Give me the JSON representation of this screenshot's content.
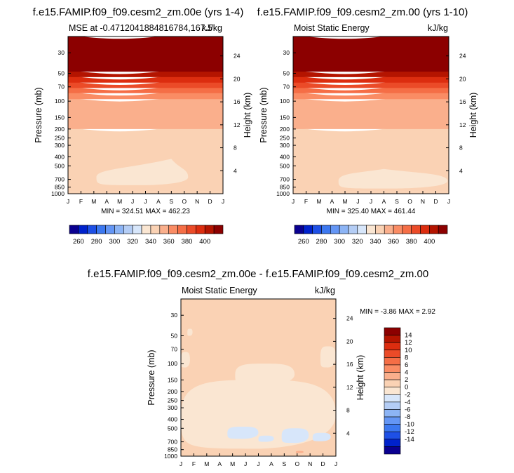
{
  "chart_data": [
    {
      "type": "heatmap",
      "title": "f.e15.FAMIP.f09_f09.cesm2_zm.00e (yrs 1-4)",
      "left_label": "MSE at -0.4712041884816784,167.5",
      "right_label": "kJ/kg",
      "xlabel": "",
      "ylabel": "Pressure (mb)",
      "ylabel_right": "Height (km)",
      "x_ticks": [
        "J",
        "F",
        "M",
        "A",
        "M",
        "J",
        "J",
        "A",
        "S",
        "O",
        "N",
        "D",
        "J"
      ],
      "y_ticks": [
        "30",
        "50",
        "70",
        "100",
        "150",
        "200",
        "250",
        "300",
        "400",
        "500",
        "700",
        "850",
        "1000"
      ],
      "y_values": [
        30,
        50,
        70,
        100,
        150,
        200,
        250,
        300,
        400,
        500,
        700,
        850,
        1000
      ],
      "ylim": [
        1000,
        20
      ],
      "height_ticks": [
        "24",
        "20",
        "16",
        "12",
        "8",
        "4"
      ],
      "height_values": [
        24,
        20,
        16,
        12,
        8,
        4
      ],
      "stats": "MIN = 324.51  MAX = 462.23",
      "min": 324.51,
      "max": 462.23,
      "bands": [
        {
          "bottom": 1000,
          "top": 950,
          "level": 340
        },
        {
          "bottom": 950,
          "top": 200,
          "level": 340
        },
        {
          "bottom": 200,
          "top": 95,
          "level": 350
        },
        {
          "bottom": 95,
          "top": 82,
          "level": 360
        },
        {
          "bottom": 82,
          "top": 72,
          "level": 370
        },
        {
          "bottom": 72,
          "top": 63,
          "level": 380
        },
        {
          "bottom": 63,
          "top": 55,
          "level": 390
        },
        {
          "bottom": 55,
          "top": 48,
          "level": 400
        },
        {
          "bottom": 48,
          "top": 20,
          "level": 410
        }
      ],
      "blobs": [
        {
          "month": [
            2.2,
            9.3
          ],
          "p": [
            540,
            810
          ],
          "peak_month": 8.0,
          "peak_p": 420,
          "level": 330
        }
      ]
    },
    {
      "type": "heatmap",
      "title": "f.e15.FAMIP.f09_f09.cesm2_zm.00 (yrs 1-10)",
      "left_label": "Moist Static Energy",
      "right_label": "kJ/kg",
      "xlabel": "",
      "ylabel": "Pressure (mb)",
      "ylabel_right": "Height (km)",
      "x_ticks": [
        "J",
        "F",
        "M",
        "A",
        "M",
        "J",
        "J",
        "A",
        "S",
        "O",
        "N",
        "D",
        "J"
      ],
      "y_ticks": [
        "30",
        "50",
        "70",
        "100",
        "150",
        "200",
        "250",
        "300",
        "400",
        "500",
        "700",
        "850",
        "1000"
      ],
      "y_values": [
        30,
        50,
        70,
        100,
        150,
        200,
        250,
        300,
        400,
        500,
        700,
        850,
        1000
      ],
      "ylim": [
        1000,
        20
      ],
      "height_ticks": [
        "24",
        "20",
        "16",
        "12",
        "8",
        "4"
      ],
      "height_values": [
        24,
        20,
        16,
        12,
        8,
        4
      ],
      "stats": "MIN = 325.40  MAX = 461.44",
      "min": 325.4,
      "max": 461.44,
      "bands": [
        {
          "bottom": 1000,
          "top": 950,
          "level": 340
        },
        {
          "bottom": 950,
          "top": 200,
          "level": 340
        },
        {
          "bottom": 200,
          "top": 95,
          "level": 350
        },
        {
          "bottom": 95,
          "top": 82,
          "level": 360
        },
        {
          "bottom": 82,
          "top": 72,
          "level": 370
        },
        {
          "bottom": 72,
          "top": 63,
          "level": 380
        },
        {
          "bottom": 63,
          "top": 55,
          "level": 390
        },
        {
          "bottom": 55,
          "top": 48,
          "level": 400
        },
        {
          "bottom": 48,
          "top": 20,
          "level": 410
        }
      ],
      "blobs": [
        {
          "month": [
            3.5,
            11.9
          ],
          "p": [
            600,
            880
          ],
          "peak_month": 7.0,
          "peak_p": 540,
          "level": 330
        }
      ]
    },
    {
      "type": "heatmap",
      "title": "f.e15.FAMIP.f09_f09.cesm2_zm.00e - f.e15.FAMIP.f09_f09.cesm2_zm.00",
      "left_label": "Moist Static Energy",
      "right_label": "kJ/kg",
      "xlabel": "",
      "ylabel": "Pressure (mb)",
      "ylabel_right": "Height (km)",
      "x_ticks": [
        "J",
        "F",
        "M",
        "A",
        "M",
        "J",
        "J",
        "A",
        "S",
        "O",
        "N",
        "D",
        "J"
      ],
      "y_ticks": [
        "30",
        "50",
        "70",
        "100",
        "150",
        "200",
        "250",
        "300",
        "400",
        "500",
        "700",
        "850",
        "1000"
      ],
      "y_values": [
        30,
        50,
        70,
        100,
        150,
        200,
        250,
        300,
        400,
        500,
        700,
        850,
        1000
      ],
      "ylim": [
        1000,
        20
      ],
      "height_ticks": [
        "24",
        "20",
        "16",
        "12",
        "8",
        "4"
      ],
      "height_values": [
        24,
        20,
        16,
        12,
        8,
        4
      ],
      "stats": "MIN =  -3.86  MAX =   2.92",
      "min": -3.86,
      "max": 2.92,
      "bands": [
        {
          "bottom": 1000,
          "top": 20,
          "level": 1
        }
      ],
      "blobs": [
        {
          "month": [
            0.0,
            12.0
          ],
          "p": [
            150,
            830
          ],
          "level": -1
        },
        {
          "month": [
            4.2,
            8.8
          ],
          "p": [
            100,
            170
          ],
          "level": -1
        },
        {
          "month": [
            0.0,
            0.7
          ],
          "p": [
            75,
            110
          ],
          "level": -1
        },
        {
          "month": [
            10.8,
            12.0
          ],
          "p": [
            65,
            110
          ],
          "level": -1
        },
        {
          "month": [
            0.5,
            0.9
          ],
          "p": [
            42,
            50
          ],
          "level": -1
        },
        {
          "month": [
            3.6,
            6.0
          ],
          "p": [
            480,
            650
          ],
          "level": -2
        },
        {
          "month": [
            7.8,
            9.9
          ],
          "p": [
            500,
            720
          ],
          "level": -2
        },
        {
          "month": [
            10.2,
            11.6
          ],
          "p": [
            560,
            690
          ],
          "level": -2
        },
        {
          "month": [
            6.0,
            7.2
          ],
          "p": [
            600,
            700
          ],
          "level": -2
        },
        {
          "month": [
            8.0,
            10.6
          ],
          "p": [
            850,
            960
          ],
          "level": 1
        },
        {
          "month": [
            8.9,
            9.5
          ],
          "p": [
            880,
            925
          ],
          "level": 3
        }
      ]
    }
  ],
  "colorbars": [
    {
      "colors": [
        "#0a0090",
        "#0022cc",
        "#1e50e6",
        "#3c78f0",
        "#6496f5",
        "#8cb4f5",
        "#b4cdf5",
        "#d7e6fa",
        "#fae6d2",
        "#fad2b4",
        "#faaf8c",
        "#fa8c64",
        "#f56e46",
        "#eb4b28",
        "#dc2d0f",
        "#b41400",
        "#8c0000"
      ],
      "labels": [
        "260",
        "280",
        "300",
        "320",
        "340",
        "360",
        "380",
        "400"
      ],
      "orientation": "horizontal",
      "levels": [
        260,
        270,
        280,
        290,
        300,
        310,
        320,
        330,
        340,
        350,
        360,
        370,
        380,
        390,
        400,
        410
      ]
    },
    {
      "colors": [
        "#0a0090",
        "#0022cc",
        "#1e50e6",
        "#3c78f0",
        "#6496f5",
        "#8cb4f5",
        "#b4cdf5",
        "#d7e6fa",
        "#fae6d2",
        "#fad2b4",
        "#faaf8c",
        "#fa8c64",
        "#f56e46",
        "#eb4b28",
        "#dc2d0f",
        "#b41400",
        "#8c0000"
      ],
      "labels": [
        "260",
        "280",
        "300",
        "320",
        "340",
        "360",
        "380",
        "400"
      ],
      "orientation": "horizontal",
      "levels": [
        260,
        270,
        280,
        290,
        300,
        310,
        320,
        330,
        340,
        350,
        360,
        370,
        380,
        390,
        400,
        410
      ]
    },
    {
      "colors": [
        "#0a0090",
        "#0022cc",
        "#1e50e6",
        "#3c78f0",
        "#6496f5",
        "#8cb4f5",
        "#b4cdf5",
        "#d7e6fa",
        "#fae6d2",
        "#fad2b4",
        "#faaf8c",
        "#fa8c64",
        "#f56e46",
        "#eb4b28",
        "#dc2d0f",
        "#b41400",
        "#8c0000"
      ],
      "labels": [
        "14",
        "12",
        "10",
        "8",
        "6",
        "4",
        "2",
        "0",
        "-2",
        "-4",
        "-6",
        "-8",
        "-10",
        "-12",
        "-14"
      ],
      "orientation": "vertical",
      "levels": [
        -15,
        -13,
        -11,
        -9,
        -7,
        -5,
        -3,
        -1,
        1,
        3,
        5,
        7,
        9,
        11,
        13,
        15
      ]
    }
  ]
}
